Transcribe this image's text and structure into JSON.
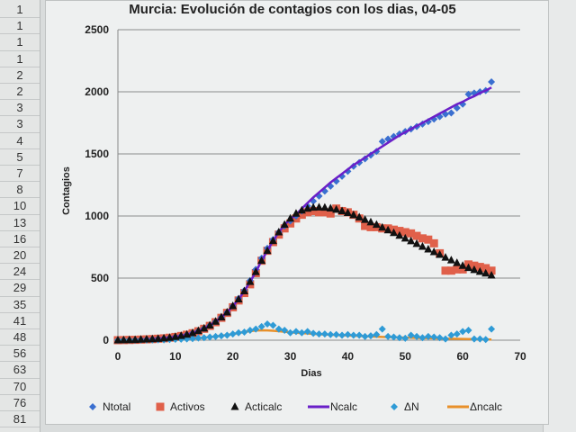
{
  "spreadsheet": {
    "row_numbers": [
      "1",
      "1",
      "1",
      "1",
      "2",
      "2",
      "3",
      "3",
      "4",
      "5",
      "7",
      "8",
      "10",
      "13",
      "16",
      "20",
      "24",
      "29",
      "35",
      "41",
      "48",
      "56",
      "63",
      "70",
      "76",
      "81"
    ]
  },
  "chart_data": {
    "type": "scatter",
    "title": "Murcia: Evolución de contagios con los dias, 04-05",
    "xlabel": "Dias",
    "ylabel": "Contagios",
    "xlim": [
      0,
      70
    ],
    "ylim": [
      0,
      2500
    ],
    "x_ticks": [
      "0",
      "10",
      "20",
      "30",
      "40",
      "50",
      "60",
      "70"
    ],
    "y_ticks": [
      "0",
      "500",
      "1000",
      "1500",
      "2000",
      "2500"
    ],
    "grid": "horizontal",
    "legend_position": "bottom",
    "x_start": 0,
    "series": [
      {
        "name": "Ntotal",
        "kind": "diamond",
        "color": "#3a6fd0",
        "values": [
          0,
          1,
          2,
          3,
          5,
          7,
          9,
          12,
          15,
          20,
          27,
          35,
          45,
          58,
          75,
          95,
          120,
          150,
          185,
          225,
          275,
          335,
          400,
          480,
          570,
          660,
          740,
          810,
          870,
          920,
          960,
          1000,
          1040,
          1080,
          1120,
          1160,
          1200,
          1240,
          1280,
          1320,
          1360,
          1400,
          1430,
          1460,
          1490,
          1520,
          1600,
          1620,
          1640,
          1660,
          1680,
          1700,
          1720,
          1740,
          1760,
          1780,
          1800,
          1820,
          1830,
          1870,
          1900,
          1980,
          1990,
          2000,
          2010,
          2080
        ]
      },
      {
        "name": "Activos",
        "kind": "square",
        "color": "#e0604a",
        "values": [
          0,
          1,
          2,
          3,
          5,
          7,
          9,
          12,
          15,
          20,
          26,
          34,
          44,
          56,
          72,
          92,
          115,
          145,
          180,
          220,
          265,
          320,
          380,
          450,
          540,
          640,
          720,
          790,
          850,
          900,
          940,
          980,
          1010,
          1030,
          1040,
          1030,
          1030,
          1020,
          1060,
          1040,
          1030,
          1010,
          980,
          920,
          910,
          910,
          900,
          900,
          890,
          880,
          870,
          860,
          840,
          820,
          810,
          780,
          700,
          560,
          560,
          570,
          570,
          610,
          600,
          590,
          580,
          560
        ]
      },
      {
        "name": "Acticalc",
        "kind": "triangle",
        "color": "#111111",
        "values": [
          0,
          1,
          2,
          3,
          5,
          7,
          9,
          12,
          15,
          20,
          27,
          35,
          45,
          58,
          75,
          95,
          120,
          150,
          185,
          225,
          275,
          330,
          395,
          470,
          550,
          640,
          720,
          800,
          870,
          930,
          980,
          1020,
          1045,
          1060,
          1068,
          1070,
          1068,
          1062,
          1052,
          1040,
          1025,
          1008,
          990,
          970,
          950,
          930,
          908,
          886,
          864,
          842,
          820,
          798,
          776,
          754,
          732,
          710,
          688,
          666,
          644,
          622,
          600,
          582,
          566,
          552,
          538,
          522
        ]
      },
      {
        "name": "Ncalc",
        "kind": "line",
        "color": "#6a1fc8",
        "values": [
          0,
          1,
          2,
          3,
          5,
          7,
          9,
          12,
          15,
          20,
          27,
          35,
          45,
          58,
          75,
          95,
          120,
          150,
          185,
          225,
          275,
          330,
          395,
          470,
          550,
          640,
          720,
          800,
          870,
          930,
          975,
          1010,
          1060,
          1105,
          1150,
          1190,
          1230,
          1270,
          1305,
          1340,
          1375,
          1410,
          1440,
          1470,
          1500,
          1530,
          1560,
          1590,
          1620,
          1650,
          1675,
          1700,
          1725,
          1750,
          1775,
          1800,
          1825,
          1850,
          1875,
          1900,
          1920,
          1945,
          1965,
          1990,
          2010,
          2035
        ]
      },
      {
        "name": "ΔN",
        "kind": "diamond",
        "color": "#2f9bd6",
        "values": [
          0,
          1,
          1,
          1,
          2,
          2,
          2,
          3,
          3,
          5,
          7,
          8,
          10,
          13,
          17,
          20,
          25,
          30,
          35,
          40,
          50,
          60,
          65,
          80,
          90,
          110,
          130,
          120,
          90,
          80,
          60,
          70,
          60,
          70,
          55,
          50,
          50,
          45,
          45,
          40,
          45,
          40,
          40,
          30,
          35,
          45,
          90,
          30,
          25,
          20,
          15,
          40,
          30,
          20,
          30,
          25,
          20,
          10,
          40,
          50,
          70,
          80,
          10,
          10,
          5,
          90
        ]
      },
      {
        "name": "Δncalc",
        "kind": "line",
        "color": "#e8902a",
        "values": [
          0,
          0,
          1,
          1,
          1,
          2,
          2,
          3,
          4,
          5,
          6,
          8,
          10,
          13,
          16,
          20,
          25,
          30,
          36,
          42,
          50,
          58,
          66,
          73,
          78,
          80,
          79,
          76,
          72,
          68,
          64,
          60,
          57,
          54,
          51,
          48,
          46,
          44,
          42,
          40,
          38,
          36,
          34,
          32,
          30,
          28,
          26,
          25,
          24,
          22,
          21,
          20,
          18,
          17,
          16,
          15,
          14,
          13,
          12,
          11,
          10,
          9,
          8,
          7,
          6,
          5
        ]
      }
    ]
  }
}
